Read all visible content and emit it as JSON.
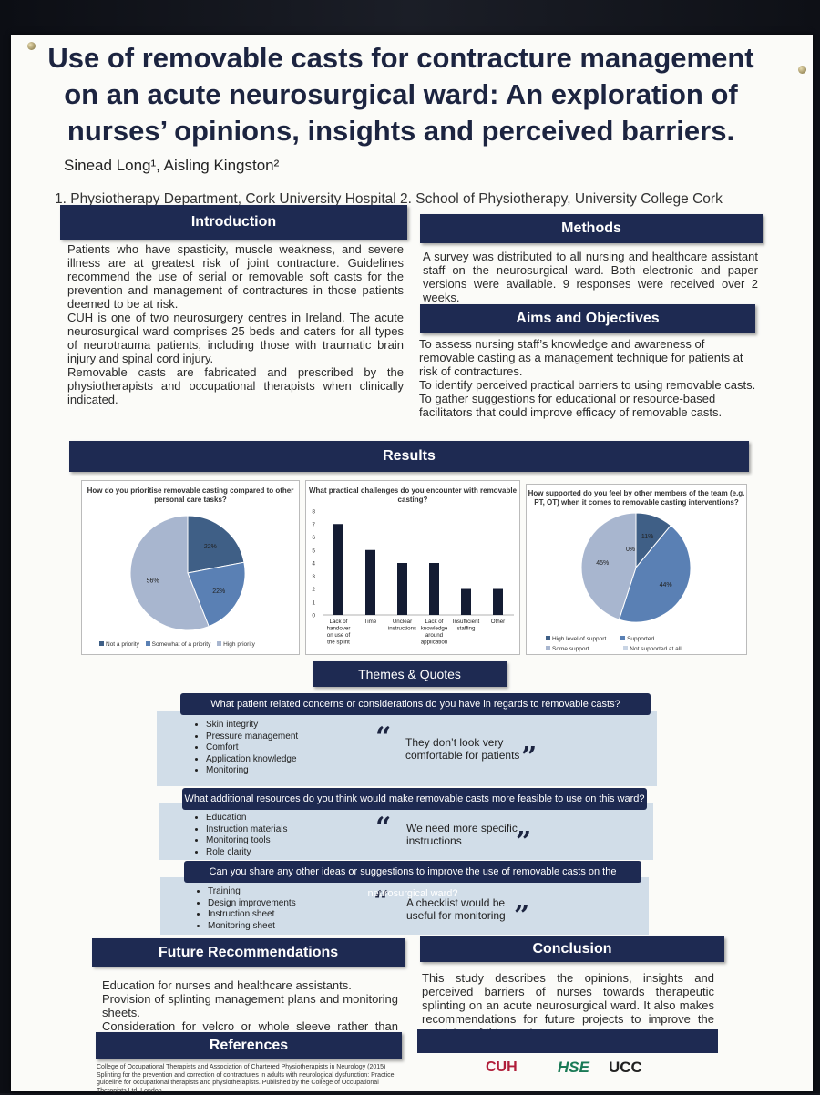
{
  "poster": {
    "title": "Use of removable casts for contracture management on an acute neurosurgical ward: An exploration of nurses’ opinions, insights and perceived barriers.",
    "authors": "Sinead Long¹, Aisling Kingston²",
    "affiliations": "1. Physiotherapy Department, Cork University Hospital 2. School of Physiotherapy, University College Cork"
  },
  "introduction": {
    "heading": "Introduction",
    "paragraphs": [
      "Patients who have spasticity, muscle weakness, and severe illness are at greatest risk of joint contracture. Guidelines recommend the use of serial or removable soft casts for the prevention and management of contractures in those patients deemed to be at risk.",
      "CUH is one of two neurosurgery centres in Ireland. The acute neurosurgical ward comprises 25 beds and caters for all types of neurotrauma patients, including those with traumatic brain injury and spinal cord injury.",
      "Removable casts are fabricated and prescribed by the physiotherapists and occupational therapists when clinically indicated."
    ]
  },
  "methods": {
    "heading": "Methods",
    "text": "A survey was distributed to all nursing and healthcare assistant staff on the neurosurgical ward. Both electronic and paper versions were available. 9 responses were received over 2 weeks."
  },
  "aims": {
    "heading": "Aims and Objectives",
    "lines": [
      "To assess nursing staff’s knowledge and awareness of removable casting as a management technique for patients at risk of contractures.",
      "To identify perceived practical barriers to using removable casts.",
      "To gather suggestions for educational or resource-based facilitators that could improve efficacy of removable casts."
    ]
  },
  "results": {
    "heading": "Results"
  },
  "chart_data": [
    {
      "type": "pie",
      "title": "How do you prioritise removable casting compared to other personal care tasks?",
      "categories": [
        "Not a priority",
        "Somewhat of a priority",
        "High priority"
      ],
      "values": [
        22,
        22,
        56
      ],
      "labels": [
        "22%",
        "22%",
        "56%"
      ],
      "colors": [
        "#3f5f86",
        "#5a80b4",
        "#a8b6cf"
      ],
      "legend_position": "bottom"
    },
    {
      "type": "bar",
      "title": "What practical challenges do you encounter with removable casting?",
      "categories": [
        "Lack of handover on use of the splint",
        "Time",
        "Unclear instructions",
        "Lack of knowledge around application",
        "Insufficient staffing",
        "Other"
      ],
      "values": [
        7,
        5,
        4,
        4,
        2,
        2
      ],
      "ylim": [
        0,
        8
      ],
      "yticks": [
        "0",
        "1",
        "2",
        "3",
        "4",
        "5",
        "6",
        "7",
        "8"
      ],
      "color": "#141c33"
    },
    {
      "type": "pie",
      "title": "How supported do you feel by other members of the team (e.g. PT, OT) when it comes to removable casting interventions?",
      "categories": [
        "High level of support",
        "Supported",
        "Some support",
        "Not supported at all"
      ],
      "values": [
        11,
        44,
        45,
        0
      ],
      "labels": [
        "11%",
        "44%",
        "45%",
        "0%"
      ],
      "colors": [
        "#3f5f86",
        "#5a80b4",
        "#a8b6cf",
        "#c8d4e4"
      ],
      "legend_position": "bottom"
    }
  ],
  "themes": {
    "heading": "Themes & Quotes",
    "blocks": [
      {
        "question": "What patient related concerns or considerations do you have in regards to removable casts?",
        "items": [
          "Skin integrity",
          "Pressure management",
          "Comfort",
          "Application knowledge",
          "Monitoring"
        ],
        "quote": "They don’t look very comfortable for patients"
      },
      {
        "question": "What additional resources do you think would make removable casts more feasible to use on this ward?",
        "items": [
          "Education",
          "Instruction materials",
          "Monitoring tools",
          "Role clarity"
        ],
        "quote": "We need more specific instructions"
      },
      {
        "question": "Can you share any other ideas or suggestions to improve the use of removable casts on the neurosurgical ward?",
        "items": [
          "Training",
          "Design improvements",
          "Instruction sheet",
          "Monitoring sheet"
        ],
        "quote": "A checklist would be useful for monitoring"
      }
    ]
  },
  "future": {
    "heading": "Future Recommendations",
    "lines": [
      "Education for nurses and healthcare assistants.",
      "Provision of splinting management plans and monitoring sheets.",
      "Consideration for velcro or whole sleeve rather than wraps."
    ]
  },
  "conclusion": {
    "heading": "Conclusion",
    "text": "This study describes the opinions, insights and perceived barriers of nurses towards therapeutic splinting on an acute neurosurgical ward. It also makes recommendations for future projects to improve the provision of this service."
  },
  "references": {
    "heading": "References",
    "text": "College of Occupational Therapists and Association of Chartered Physiotherapists in Neurology (2015) Splinting for the prevention and correction of contractures in adults with neurological dysfunction: Practice guideline for occupational therapists and physiotherapists. Published by the College of Occupational Therapists Ltd, London"
  },
  "logos": {
    "cuh": "CUH",
    "hse": "HSE",
    "ucc": "UCC"
  },
  "colors": {
    "navy": "#1e2a52",
    "panel": "#d1dde8"
  }
}
